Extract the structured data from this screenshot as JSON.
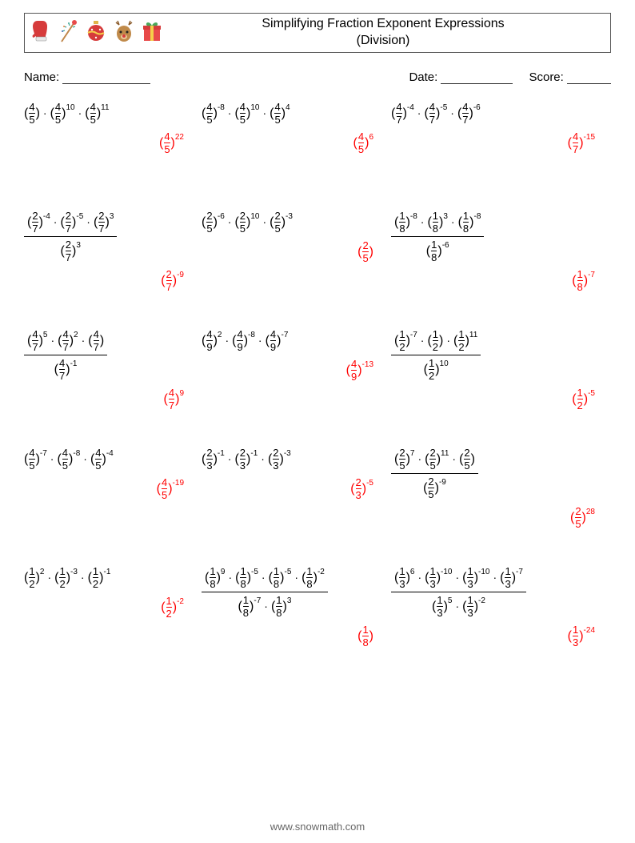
{
  "title_line1": "Simplifying Fraction Exponent Expressions",
  "title_line2": "(Division)",
  "labels": {
    "name": "Name:",
    "date": "Date:",
    "score": "Score:"
  },
  "underline_widths": {
    "name": 110,
    "date": 90,
    "score": 55
  },
  "footer": "www.snowmath.com",
  "icons": [
    {
      "name": "mitten-icon",
      "svg": "<svg width='26' height='30' viewBox='0 0 26 30'><path d='M8 2c-4 0-6 3-6 7 0 3 1 6 2 9l-2 2c-1 1 0 3 1 3l3-2v3h12v-3c1-3 2-8 2-12 0-4-2-7-6-7z' fill='#d63b3b'/><rect x='6' y='22' width='13' height='5' rx='1' fill='#e8e8e8' stroke='#888' stroke-width='0.5'/></svg>"
    },
    {
      "name": "firework-icon",
      "svg": "<svg width='26' height='30' viewBox='0 0 26 30'><line x1='4' y1='28' x2='20' y2='4' stroke='#c0874a' stroke-width='2'/><circle cx='20' cy='4' r='3' fill='#e84a4a'/><path d='M8 14l-3 1M10 10l-3-1M14 8l-1-3M18 10l3-1' stroke='#4a9' stroke-width='1.3'/><circle cx='5' cy='15' r='1' fill='#46b'/><circle cx='7' cy='9' r='1' fill='#e84'/><circle cx='13' cy='5' r='1' fill='#4a9'/></svg>"
    },
    {
      "name": "ornament-icon",
      "svg": "<svg width='26' height='30' viewBox='0 0 26 30'><rect x='10' y='2' width='6' height='4' fill='#e0b44a'/><circle cx='13' cy='17' r='10' fill='#d63b3b'/><path d='M3 17c3-2 7-2 10 0s7 2 10 0' stroke='#f5d04a' stroke-width='2' fill='none'/><circle cx='8' cy='13' r='1.2' fill='#fff'/><circle cx='18' cy='13' r='1.2' fill='#fff'/><circle cx='13' cy='23' r='1.2' fill='#fff'/></svg>"
    },
    {
      "name": "reindeer-icon",
      "svg": "<svg width='28' height='30' viewBox='0 0 28 30'><path d='M6 2l2 5M4 4l4 3M22 2l-2 5M24 4l-4 3' stroke='#8a5a2a' stroke-width='1.5' fill='none'/><ellipse cx='14' cy='18' rx='9' ry='10' fill='#c08a4a'/><circle cx='10' cy='16' r='1.5' fill='#222'/><circle cx='18' cy='16' r='1.5' fill='#222'/><ellipse cx='14' cy='22' rx='4' ry='3' fill='#e8c89a'/><circle cx='14' cy='21' r='2' fill='#d63b3b'/></svg>"
    },
    {
      "name": "gift-icon",
      "svg": "<svg width='26' height='30' viewBox='0 0 26 30'><rect x='3' y='11' width='20' height='16' fill='#e84a4a'/><rect x='2' y='8' width='22' height='5' fill='#d63b3b'/><rect x='11' y='8' width='4' height='19' fill='#f5d04a'/><path d='M13 8c-2-5-8-5-7-1 1 2 4 1 7 1zM13 8c2-5 8-5 7-1-1 2-4 1-7 1z' fill='#4aa85a'/></svg>"
    }
  ],
  "problems": [
    {
      "type": "mult",
      "terms": [
        {
          "n": 4,
          "d": 5,
          "e": ""
        },
        {
          "n": 4,
          "d": 5,
          "e": "10"
        },
        {
          "n": 4,
          "d": 5,
          "e": "11"
        }
      ],
      "ans": {
        "n": 4,
        "d": 5,
        "e": "22"
      }
    },
    {
      "type": "mult",
      "terms": [
        {
          "n": 4,
          "d": 5,
          "e": "-8"
        },
        {
          "n": 4,
          "d": 5,
          "e": "10"
        },
        {
          "n": 4,
          "d": 5,
          "e": "4"
        }
      ],
      "ans": {
        "n": 4,
        "d": 5,
        "e": "6"
      }
    },
    {
      "type": "mult",
      "terms": [
        {
          "n": 4,
          "d": 7,
          "e": "-4"
        },
        {
          "n": 4,
          "d": 7,
          "e": "-5"
        },
        {
          "n": 4,
          "d": 7,
          "e": "-6"
        }
      ],
      "ans": {
        "n": 4,
        "d": 7,
        "e": "-15"
      }
    },
    {
      "type": "div",
      "num": [
        {
          "n": 2,
          "d": 7,
          "e": "-4"
        },
        {
          "n": 2,
          "d": 7,
          "e": "-5"
        },
        {
          "n": 2,
          "d": 7,
          "e": "3"
        }
      ],
      "den": [
        {
          "n": 2,
          "d": 7,
          "e": "3"
        }
      ],
      "ans": {
        "n": 2,
        "d": 7,
        "e": "-9"
      }
    },
    {
      "type": "mult",
      "terms": [
        {
          "n": 2,
          "d": 5,
          "e": "-6"
        },
        {
          "n": 2,
          "d": 5,
          "e": "10"
        },
        {
          "n": 2,
          "d": 5,
          "e": "-3"
        }
      ],
      "ans": {
        "n": 2,
        "d": 5,
        "e": ""
      }
    },
    {
      "type": "div",
      "num": [
        {
          "n": 1,
          "d": 8,
          "e": "-8"
        },
        {
          "n": 1,
          "d": 8,
          "e": "3"
        },
        {
          "n": 1,
          "d": 8,
          "e": "-8"
        }
      ],
      "den": [
        {
          "n": 1,
          "d": 8,
          "e": "-6"
        }
      ],
      "ans": {
        "n": 1,
        "d": 8,
        "e": "-7"
      }
    },
    {
      "type": "div",
      "num": [
        {
          "n": 4,
          "d": 7,
          "e": "5"
        },
        {
          "n": 4,
          "d": 7,
          "e": "2"
        },
        {
          "n": 4,
          "d": 7,
          "e": ""
        }
      ],
      "den": [
        {
          "n": 4,
          "d": 7,
          "e": "-1"
        }
      ],
      "ans": {
        "n": 4,
        "d": 7,
        "e": "9"
      }
    },
    {
      "type": "mult",
      "terms": [
        {
          "n": 4,
          "d": 9,
          "e": "2"
        },
        {
          "n": 4,
          "d": 9,
          "e": "-8"
        },
        {
          "n": 4,
          "d": 9,
          "e": "-7"
        }
      ],
      "ans": {
        "n": 4,
        "d": 9,
        "e": "-13"
      }
    },
    {
      "type": "div",
      "num": [
        {
          "n": 1,
          "d": 2,
          "e": "-7"
        },
        {
          "n": 1,
          "d": 2,
          "e": ""
        },
        {
          "n": 1,
          "d": 2,
          "e": "11"
        }
      ],
      "den": [
        {
          "n": 1,
          "d": 2,
          "e": "10"
        }
      ],
      "ans": {
        "n": 1,
        "d": 2,
        "e": "-5"
      }
    },
    {
      "type": "mult",
      "terms": [
        {
          "n": 4,
          "d": 5,
          "e": "-7"
        },
        {
          "n": 4,
          "d": 5,
          "e": "-8"
        },
        {
          "n": 4,
          "d": 5,
          "e": "-4"
        }
      ],
      "ans": {
        "n": 4,
        "d": 5,
        "e": "-19"
      }
    },
    {
      "type": "mult",
      "terms": [
        {
          "n": 2,
          "d": 3,
          "e": "-1"
        },
        {
          "n": 2,
          "d": 3,
          "e": "-1"
        },
        {
          "n": 2,
          "d": 3,
          "e": "-3"
        }
      ],
      "ans": {
        "n": 2,
        "d": 3,
        "e": "-5"
      }
    },
    {
      "type": "div",
      "num": [
        {
          "n": 2,
          "d": 5,
          "e": "7"
        },
        {
          "n": 2,
          "d": 5,
          "e": "11"
        },
        {
          "n": 2,
          "d": 5,
          "e": ""
        }
      ],
      "den": [
        {
          "n": 2,
          "d": 5,
          "e": "-9"
        }
      ],
      "ans": {
        "n": 2,
        "d": 5,
        "e": "28"
      }
    },
    {
      "type": "mult",
      "terms": [
        {
          "n": 1,
          "d": 2,
          "e": "2"
        },
        {
          "n": 1,
          "d": 2,
          "e": "-3"
        },
        {
          "n": 1,
          "d": 2,
          "e": "-1"
        }
      ],
      "ans": {
        "n": 1,
        "d": 2,
        "e": "-2"
      }
    },
    {
      "type": "div",
      "num": [
        {
          "n": 1,
          "d": 8,
          "e": "9"
        },
        {
          "n": 1,
          "d": 8,
          "e": "-5"
        },
        {
          "n": 1,
          "d": 8,
          "e": "-5"
        },
        {
          "n": 1,
          "d": 8,
          "e": "-2"
        }
      ],
      "den": [
        {
          "n": 1,
          "d": 8,
          "e": "-7"
        },
        {
          "n": 1,
          "d": 8,
          "e": "3"
        }
      ],
      "ans": {
        "n": 1,
        "d": 8,
        "e": ""
      }
    },
    {
      "type": "div",
      "num": [
        {
          "n": 1,
          "d": 3,
          "e": "6"
        },
        {
          "n": 1,
          "d": 3,
          "e": "-10"
        },
        {
          "n": 1,
          "d": 3,
          "e": "-10"
        },
        {
          "n": 1,
          "d": 3,
          "e": "-7"
        }
      ],
      "den": [
        {
          "n": 1,
          "d": 3,
          "e": "5"
        },
        {
          "n": 1,
          "d": 3,
          "e": "-2"
        }
      ],
      "ans": {
        "n": 1,
        "d": 3,
        "e": "-24"
      }
    }
  ]
}
